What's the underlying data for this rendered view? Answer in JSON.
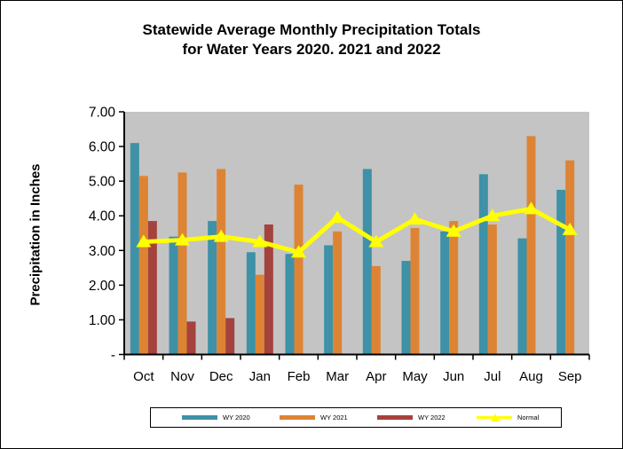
{
  "title": {
    "line1": "Statewide Average Monthly Precipitation Totals",
    "line2": "for Water Years 2020. 2021 and 2022"
  },
  "y_axis": {
    "title": "Precipitation in Inches",
    "tick_labels": [
      "-",
      "1.00",
      "2.00",
      "3.00",
      "4.00",
      "5.00",
      "6.00",
      "7.00"
    ]
  },
  "colors": {
    "wy2020": "#3E91A6",
    "wy2021": "#DD8434",
    "wy2022": "#A4423E",
    "normal": "#FFFF00",
    "plot_background": "#C4C4C4",
    "axis": "#000000"
  },
  "chart_data": {
    "type": "bar",
    "title": "Statewide Average Monthly Precipitation Totals for Water Years 2020. 2021 and 2022",
    "xlabel": "",
    "ylabel": "Precipitation in Inches",
    "ylim": [
      0,
      7
    ],
    "grid": false,
    "legend_position": "bottom",
    "plot_bg": "#C4C4C4",
    "categories": [
      "Oct",
      "Nov",
      "Dec",
      "Jan",
      "Feb",
      "Mar",
      "Apr",
      "May",
      "Jun",
      "Jul",
      "Aug",
      "Sep"
    ],
    "series": [
      {
        "name": "WY 2020",
        "type": "bar",
        "color": "#3E91A6",
        "values": [
          6.1,
          3.4,
          3.85,
          2.95,
          2.9,
          3.15,
          5.35,
          2.7,
          3.55,
          5.2,
          3.35,
          4.75
        ]
      },
      {
        "name": "WY 2021",
        "type": "bar",
        "color": "#DD8434",
        "values": [
          5.15,
          5.25,
          5.35,
          2.3,
          4.9,
          3.55,
          2.55,
          3.65,
          3.85,
          3.75,
          6.3,
          5.6
        ]
      },
      {
        "name": "WY 2022",
        "type": "bar",
        "color": "#A4423E",
        "values": [
          3.85,
          0.95,
          1.05,
          3.75,
          null,
          null,
          null,
          null,
          null,
          null,
          null,
          null
        ]
      },
      {
        "name": "Normal",
        "type": "line",
        "color": "#FFFF00",
        "marker": "triangle",
        "values": [
          3.25,
          3.3,
          3.4,
          3.25,
          2.95,
          3.95,
          3.25,
          3.9,
          3.55,
          4.0,
          4.2,
          3.6
        ]
      }
    ]
  },
  "legend": {
    "items": [
      {
        "label": "WY 2020"
      },
      {
        "label": "WY 2021"
      },
      {
        "label": "WY 2022"
      },
      {
        "label": "Normal"
      }
    ]
  }
}
